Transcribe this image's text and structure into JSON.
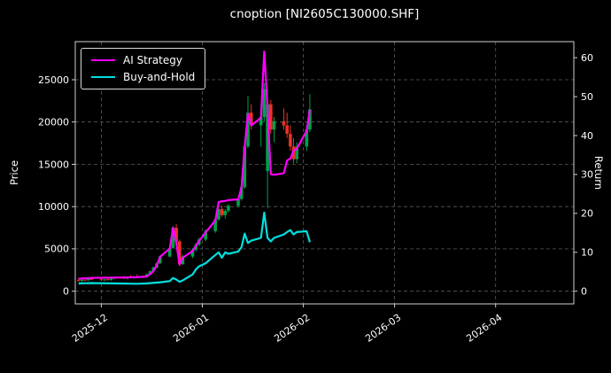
{
  "window": {
    "title": "cnoption [NI2605C130000.SHF]"
  },
  "chart_data": {
    "type": "candlestick+line",
    "title": "cnoption [NI2605C130000.SHF]",
    "background": "#000000",
    "grid": true,
    "grid_color": "#5a5a5a",
    "x_domain": [
      "2025-11-23",
      "2026-04-25"
    ],
    "x_ticks": [
      "2025-12",
      "2026-01",
      "2026-02",
      "2026-03",
      "2026-04"
    ],
    "y_left": {
      "label": "Price",
      "ticks": [
        0,
        5000,
        10000,
        15000,
        20000,
        25000
      ],
      "lim": [
        -1500,
        29500
      ]
    },
    "y_right": {
      "label": "Return",
      "ticks": [
        0,
        10,
        20,
        30,
        40,
        50,
        60
      ],
      "lim": [
        -3.26,
        64.13
      ]
    },
    "legend": {
      "position": "upper left",
      "items": [
        {
          "label": "AI Strategy",
          "color": "#ff00ff"
        },
        {
          "label": "Buy-and-Hold",
          "color": "#00e0e0"
        }
      ]
    },
    "candles": {
      "up_color": "#00a04a",
      "down_color": "#ef3125",
      "ohlc": [
        [
          "2025-11-24",
          1300,
          1500,
          1150,
          1250
        ],
        [
          "2025-11-25",
          1250,
          1400,
          1100,
          1350
        ],
        [
          "2025-11-26",
          1350,
          1600,
          1250,
          1300
        ],
        [
          "2025-11-27",
          1300,
          1500,
          1200,
          1450
        ],
        [
          "2025-11-28",
          1450,
          1700,
          1350,
          1400
        ],
        [
          "2025-12-01",
          1400,
          1600,
          1250,
          1300
        ],
        [
          "2025-12-02",
          1300,
          1450,
          1200,
          1400
        ],
        [
          "2025-12-03",
          1400,
          1650,
          1300,
          1350
        ],
        [
          "2025-12-04",
          1350,
          1550,
          1250,
          1500
        ],
        [
          "2025-12-05",
          1500,
          1750,
          1400,
          1600
        ],
        [
          "2025-12-08",
          1600,
          1800,
          1450,
          1500
        ],
        [
          "2025-12-09",
          1500,
          1700,
          1400,
          1650
        ],
        [
          "2025-12-10",
          1650,
          1900,
          1550,
          1600
        ],
        [
          "2025-12-11",
          1600,
          1800,
          1500,
          1750
        ],
        [
          "2025-12-12",
          1750,
          2000,
          1650,
          1700
        ],
        [
          "2025-12-15",
          1700,
          2100,
          1650,
          2000
        ],
        [
          "2025-12-16",
          2000,
          2450,
          1900,
          2350
        ],
        [
          "2025-12-17",
          2350,
          2900,
          2250,
          2800
        ],
        [
          "2025-12-18",
          2800,
          3400,
          2700,
          3300
        ],
        [
          "2025-12-19",
          3300,
          4200,
          3200,
          4100
        ],
        [
          "2025-12-22",
          4100,
          5300,
          4000,
          5100
        ],
        [
          "2025-12-23",
          5100,
          7700,
          5000,
          7500
        ],
        [
          "2025-12-24",
          7500,
          7900,
          5600,
          5900
        ],
        [
          "2025-12-25",
          5900,
          6100,
          3000,
          3200
        ],
        [
          "2025-12-26",
          3200,
          4300,
          3100,
          4100
        ],
        [
          "2025-12-29",
          4100,
          5100,
          3900,
          4900
        ],
        [
          "2025-12-30",
          4900,
          5700,
          4700,
          5500
        ],
        [
          "2025-12-31",
          5500,
          6300,
          5300,
          6100
        ],
        [
          "2026-01-02",
          6100,
          7300,
          5900,
          7100
        ],
        [
          "2026-01-05",
          7100,
          8700,
          6900,
          8500
        ],
        [
          "2026-01-06",
          8500,
          10000,
          8300,
          9700
        ],
        [
          "2026-01-07",
          9700,
          10100,
          8800,
          9000
        ],
        [
          "2026-01-08",
          9000,
          9700,
          8600,
          9500
        ],
        [
          "2026-01-09",
          9500,
          10300,
          9300,
          10100
        ],
        [
          "2026-01-12",
          10100,
          11100,
          9900,
          10900
        ],
        [
          "2026-01-13",
          10900,
          12600,
          10700,
          12300
        ],
        [
          "2026-01-14",
          12300,
          17600,
          12100,
          17100
        ],
        [
          "2026-01-15",
          17100,
          23100,
          16900,
          21100
        ],
        [
          "2026-01-16",
          21100,
          22100,
          19100,
          19600
        ],
        [
          "2026-01-19",
          19600,
          21600,
          17100,
          20600
        ],
        [
          "2026-01-20",
          20600,
          24600,
          20100,
          23900
        ],
        [
          "2026-01-21",
          14200,
          23900,
          9800,
          22100
        ],
        [
          "2026-01-22",
          22100,
          22600,
          18600,
          19100
        ],
        [
          "2026-01-23",
          19100,
          20600,
          17600,
          20100
        ],
        [
          "2026-01-26",
          20100,
          21600,
          19100,
          19600
        ],
        [
          "2026-01-27",
          19600,
          21100,
          18100,
          18600
        ],
        [
          "2026-01-28",
          18600,
          19600,
          16600,
          17100
        ],
        [
          "2026-01-29",
          17100,
          18100,
          15100,
          15600
        ],
        [
          "2026-01-30",
          15600,
          17600,
          15100,
          17100
        ],
        [
          "2026-02-02",
          17100,
          19600,
          16600,
          19100
        ],
        [
          "2026-02-03",
          19100,
          23300,
          18800,
          21500
        ]
      ]
    },
    "series": [
      {
        "name": "AI Strategy",
        "axis": "right",
        "color": "#ff00ff",
        "points": [
          [
            "2025-11-24",
            3.2
          ],
          [
            "2025-11-28",
            3.4
          ],
          [
            "2025-12-05",
            3.5
          ],
          [
            "2025-12-12",
            3.6
          ],
          [
            "2025-12-15",
            3.8
          ],
          [
            "2025-12-16",
            4.4
          ],
          [
            "2025-12-17",
            5.2
          ],
          [
            "2025-12-18",
            6.6
          ],
          [
            "2025-12-19",
            8.8
          ],
          [
            "2025-12-22",
            11.0
          ],
          [
            "2025-12-23",
            16.3
          ],
          [
            "2025-12-24",
            12.4
          ],
          [
            "2025-12-25",
            6.8
          ],
          [
            "2025-12-26",
            8.6
          ],
          [
            "2025-12-29",
            10.3
          ],
          [
            "2025-12-30",
            11.6
          ],
          [
            "2025-12-31",
            12.9
          ],
          [
            "2026-01-02",
            15.1
          ],
          [
            "2026-01-05",
            18.2
          ],
          [
            "2026-01-06",
            22.9
          ],
          [
            "2026-01-07",
            23.1
          ],
          [
            "2026-01-08",
            23.2
          ],
          [
            "2026-01-09",
            23.4
          ],
          [
            "2026-01-12",
            23.6
          ],
          [
            "2026-01-13",
            26.6
          ],
          [
            "2026-01-14",
            37.2
          ],
          [
            "2026-01-15",
            45.6
          ],
          [
            "2026-01-16",
            42.6
          ],
          [
            "2026-01-19",
            44.6
          ],
          [
            "2026-01-20",
            61.6
          ],
          [
            "2026-01-21",
            47.2
          ],
          [
            "2026-01-22",
            30.1
          ],
          [
            "2026-01-23",
            29.9
          ],
          [
            "2026-01-26",
            30.3
          ],
          [
            "2026-01-27",
            33.6
          ],
          [
            "2026-01-28",
            34.1
          ],
          [
            "2026-01-29",
            36.1
          ],
          [
            "2026-01-30",
            36.6
          ],
          [
            "2026-02-02",
            41.2
          ],
          [
            "2026-02-03",
            46.6
          ]
        ]
      },
      {
        "name": "Buy-and-Hold",
        "axis": "right",
        "color": "#00e0e0",
        "points": [
          [
            "2025-11-24",
            2.0
          ],
          [
            "2025-11-28",
            2.1
          ],
          [
            "2025-12-05",
            2.0
          ],
          [
            "2025-12-12",
            1.9
          ],
          [
            "2025-12-15",
            2.0
          ],
          [
            "2025-12-19",
            2.3
          ],
          [
            "2025-12-22",
            2.6
          ],
          [
            "2025-12-23",
            3.4
          ],
          [
            "2025-12-24",
            3.0
          ],
          [
            "2025-12-25",
            2.4
          ],
          [
            "2025-12-26",
            2.8
          ],
          [
            "2025-12-29",
            4.3
          ],
          [
            "2025-12-30",
            5.6
          ],
          [
            "2025-12-31",
            6.4
          ],
          [
            "2026-01-02",
            7.2
          ],
          [
            "2026-01-05",
            9.3
          ],
          [
            "2026-01-06",
            10.0
          ],
          [
            "2026-01-07",
            8.6
          ],
          [
            "2026-01-08",
            10.0
          ],
          [
            "2026-01-09",
            9.6
          ],
          [
            "2026-01-12",
            10.2
          ],
          [
            "2026-01-13",
            11.3
          ],
          [
            "2026-01-14",
            14.8
          ],
          [
            "2026-01-15",
            12.4
          ],
          [
            "2026-01-16",
            13.0
          ],
          [
            "2026-01-19",
            13.7
          ],
          [
            "2026-01-20",
            20.2
          ],
          [
            "2026-01-21",
            13.7
          ],
          [
            "2026-01-22",
            12.8
          ],
          [
            "2026-01-23",
            13.7
          ],
          [
            "2026-01-26",
            14.6
          ],
          [
            "2026-01-27",
            15.2
          ],
          [
            "2026-01-28",
            15.7
          ],
          [
            "2026-01-29",
            14.6
          ],
          [
            "2026-01-30",
            15.2
          ],
          [
            "2026-02-02",
            15.4
          ],
          [
            "2026-02-03",
            12.6
          ]
        ]
      }
    ]
  }
}
